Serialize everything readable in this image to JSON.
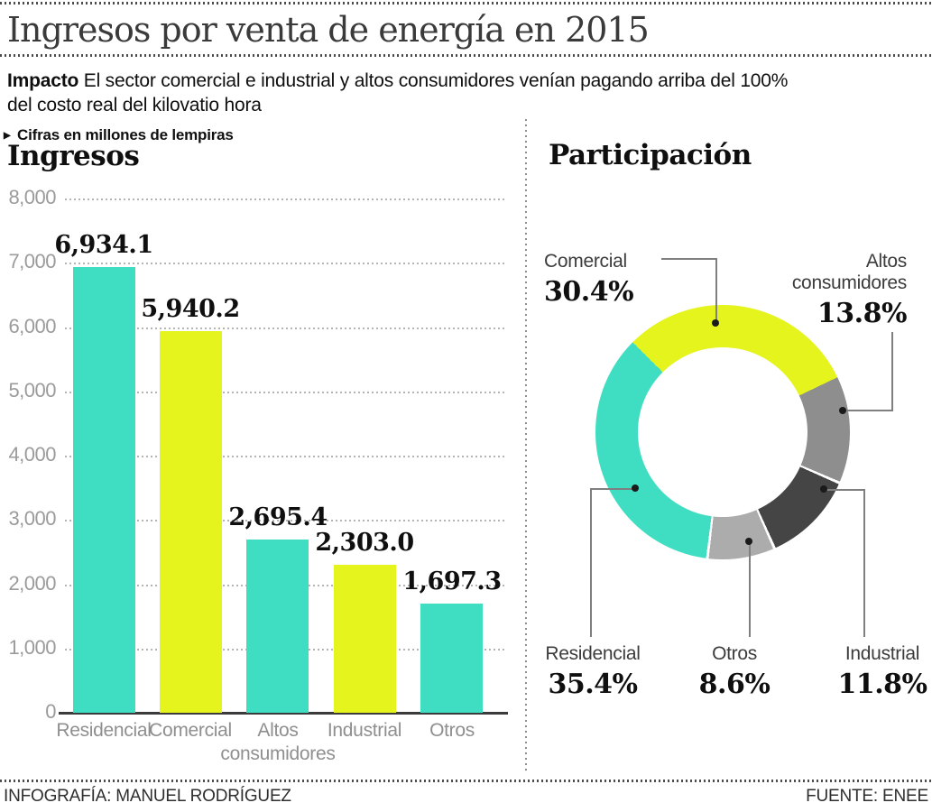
{
  "header": {
    "title": "Ingresos por venta de energía en 2015",
    "impact_label": "Impacto",
    "impact_line1": "El sector comercial e industrial y altos consumidores venían pagando arriba del 100%",
    "impact_line2": "del costo real del kilovatio hora"
  },
  "bar_section": {
    "arrow_icon": "▶",
    "note": "Cifras en millones de lempiras",
    "title": "Ingresos"
  },
  "donut_section": {
    "title": "Participación"
  },
  "footer": {
    "credit": "INFOGRAFÍA: MANUEL RODRÍGUEZ",
    "source": "FUENTE: ENEE"
  },
  "colors": {
    "teal": "#3FDEC2",
    "yellow": "#E4F41C",
    "gray_mid": "#8E8E8E",
    "gray_dark": "#454545",
    "gray_light": "#ACACAC"
  },
  "chart_data": [
    {
      "type": "bar",
      "title": "Ingresos",
      "subtitle": "Cifras en millones de lempiras",
      "categories": [
        "Residencial",
        "Comercial",
        "Altos consumidores",
        "Industrial",
        "Otros"
      ],
      "values": [
        6934.1,
        5940.2,
        2695.4,
        2303.0,
        1697.3
      ],
      "value_labels": [
        "6,934.1",
        "5,940.2",
        "2,695.4",
        "2,303.0",
        "1,697.3"
      ],
      "bar_colors": [
        "teal",
        "yellow",
        "teal",
        "yellow",
        "teal"
      ],
      "xlabel": "",
      "ylabel": "",
      "ylim": [
        0,
        8000
      ],
      "ytick_labels": [
        "8,000",
        "7,000",
        "6,000",
        "5,000",
        "4,000",
        "3,000",
        "2,000",
        "1,000",
        "0"
      ],
      "grid": "dotted horizontal"
    },
    {
      "type": "pie",
      "subtype": "donut",
      "title": "Participación",
      "start_angle_deg": -45,
      "direction": "clockwise",
      "segments": [
        {
          "label": "Comercial",
          "value": 30.4,
          "pct_label": "30.4%",
          "color": "yellow"
        },
        {
          "label": "Altos consumidores",
          "value": 13.8,
          "pct_label": "13.8%",
          "color": "gray_mid"
        },
        {
          "label": "Industrial",
          "value": 11.8,
          "pct_label": "11.8%",
          "color": "gray_dark"
        },
        {
          "label": "Otros",
          "value": 8.6,
          "pct_label": "8.6%",
          "color": "gray_light"
        },
        {
          "label": "Residencial",
          "value": 35.4,
          "pct_label": "35.4%",
          "color": "teal"
        }
      ],
      "legend_position": "callout labels with leader lines"
    }
  ]
}
